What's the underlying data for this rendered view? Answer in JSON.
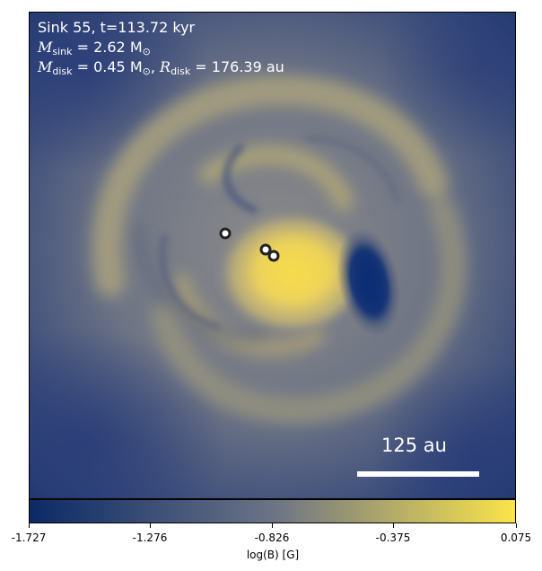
{
  "annotations": {
    "sink_line": "Sink 55, t=113.72 kyr",
    "msink_symbol": "M",
    "msink_sub": "sink",
    "msink_value": " = 2.62 M",
    "msink_sun": "⊙",
    "mdisk_symbol": "M",
    "mdisk_sub": "disk",
    "mdisk_value": " = 0.45 M",
    "mdisk_sun": "⊙",
    "mdisk_sep": ", ",
    "rdisk_symbol": "R",
    "rdisk_sub": "disk",
    "rdisk_value": " = 176.39 au"
  },
  "scale_bar": {
    "label": "125 au"
  },
  "colorbar": {
    "label": "log(B) [G]",
    "ticks": [
      "-1.727",
      "-1.276",
      "-0.826",
      "-0.375",
      "0.075"
    ],
    "colors": [
      "#0b2a66",
      "#6b7386",
      "#fbe44a"
    ]
  },
  "markers": {
    "sinks": [
      "sink-marker",
      "sink-marker",
      "sink-marker"
    ]
  },
  "colors": {
    "low": "#14306a",
    "mid": "#7f8494",
    "high": "#f6dd58",
    "text": "#ffffff"
  }
}
